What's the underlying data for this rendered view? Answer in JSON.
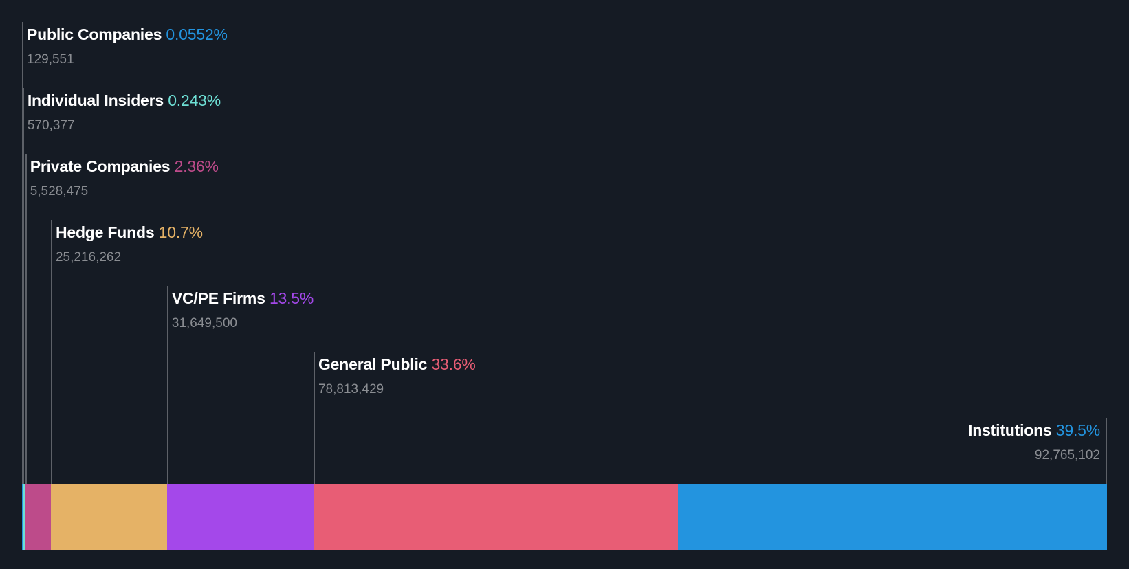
{
  "chart_data": {
    "type": "bar",
    "subtype": "stacked-horizontal-100",
    "title": "",
    "categories": [
      "Public Companies",
      "Individual Insiders",
      "Private Companies",
      "Hedge Funds",
      "VC/PE Firms",
      "General Public",
      "Institutions"
    ],
    "series": [
      {
        "name": "Ownership %",
        "values": [
          0.0552,
          0.243,
          2.36,
          10.7,
          13.5,
          33.6,
          39.5
        ]
      },
      {
        "name": "Shares",
        "values": [
          129551,
          570377,
          5528475,
          25216262,
          31649500,
          78813429,
          92765102
        ]
      }
    ],
    "colors": [
      "#2394df",
      "#6ee0d5",
      "#bd4b8a",
      "#e5b266",
      "#a448ea",
      "#e85d75",
      "#2394df"
    ],
    "xlabel": "",
    "ylabel": "",
    "grid": false,
    "legend": "inline-labels"
  },
  "labels": [
    {
      "name": "Public Companies",
      "pct": "0.0552%",
      "value": "129,551",
      "color": "#2394df"
    },
    {
      "name": "Individual Insiders",
      "pct": "0.243%",
      "value": "570,377",
      "color": "#6ee0d5"
    },
    {
      "name": "Private Companies",
      "pct": "2.36%",
      "value": "5,528,475",
      "color": "#bd4b8a"
    },
    {
      "name": "Hedge Funds",
      "pct": "10.7%",
      "value": "25,216,262",
      "color": "#e5b266"
    },
    {
      "name": "VC/PE Firms",
      "pct": "13.5%",
      "value": "31,649,500",
      "color": "#a448ea"
    },
    {
      "name": "General Public",
      "pct": "33.6%",
      "value": "78,813,429",
      "color": "#e85d75"
    },
    {
      "name": "Institutions",
      "pct": "39.5%",
      "value": "92,765,102",
      "color": "#2394df"
    }
  ]
}
